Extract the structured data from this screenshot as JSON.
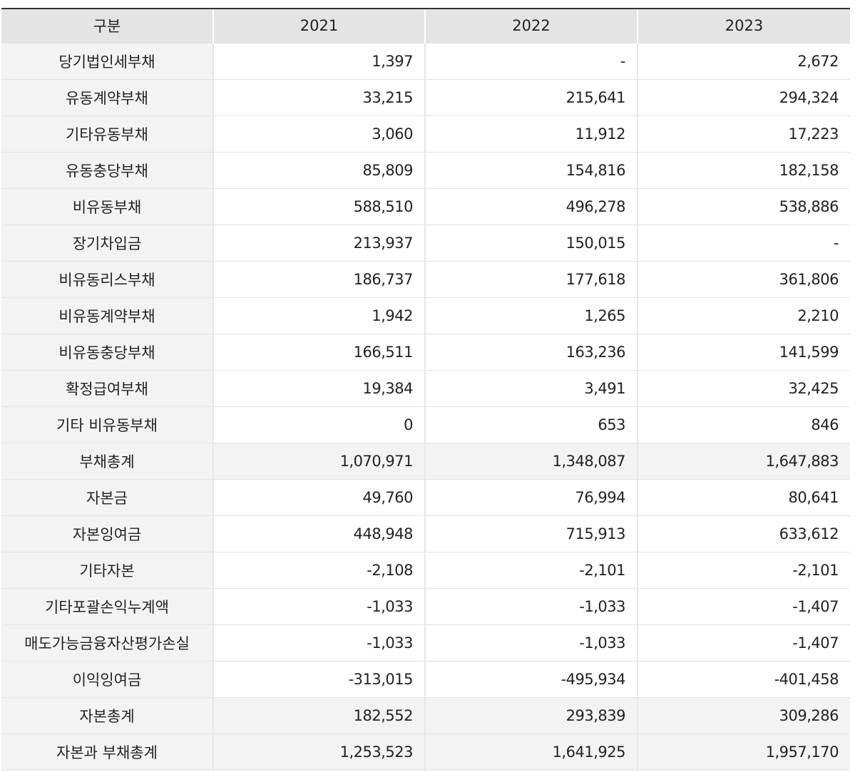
{
  "table": {
    "headers": [
      "구분",
      "2021",
      "2022",
      "2023"
    ],
    "rows": [
      {
        "label": "당기법인세부채",
        "values": [
          "1,397",
          "-",
          "2,672"
        ],
        "total": false
      },
      {
        "label": "유동계약부채",
        "values": [
          "33,215",
          "215,641",
          "294,324"
        ],
        "total": false
      },
      {
        "label": "기타유동부채",
        "values": [
          "3,060",
          "11,912",
          "17,223"
        ],
        "total": false
      },
      {
        "label": "유동충당부채",
        "values": [
          "85,809",
          "154,816",
          "182,158"
        ],
        "total": false
      },
      {
        "label": "비유동부채",
        "values": [
          "588,510",
          "496,278",
          "538,886"
        ],
        "total": false
      },
      {
        "label": "장기차입금",
        "values": [
          "213,937",
          "150,015",
          "-"
        ],
        "total": false
      },
      {
        "label": "비유동리스부채",
        "values": [
          "186,737",
          "177,618",
          "361,806"
        ],
        "total": false
      },
      {
        "label": "비유동계약부채",
        "values": [
          "1,942",
          "1,265",
          "2,210"
        ],
        "total": false
      },
      {
        "label": "비유동충당부채",
        "values": [
          "166,511",
          "163,236",
          "141,599"
        ],
        "total": false
      },
      {
        "label": "확정급여부채",
        "values": [
          "19,384",
          "3,491",
          "32,425"
        ],
        "total": false
      },
      {
        "label": "기타 비유동부채",
        "values": [
          "0",
          "653",
          "846"
        ],
        "total": false
      },
      {
        "label": "부채총계",
        "values": [
          "1,070,971",
          "1,348,087",
          "1,647,883"
        ],
        "total": true
      },
      {
        "label": "자본금",
        "values": [
          "49,760",
          "76,994",
          "80,641"
        ],
        "total": false
      },
      {
        "label": "자본잉여금",
        "values": [
          "448,948",
          "715,913",
          "633,612"
        ],
        "total": false
      },
      {
        "label": "기타자본",
        "values": [
          "-2,108",
          "-2,101",
          "-2,101"
        ],
        "total": false
      },
      {
        "label": "기타포괄손익누계액",
        "values": [
          "-1,033",
          "-1,033",
          "-1,407"
        ],
        "total": false
      },
      {
        "label": "매도가능금융자산평가손실",
        "values": [
          "-1,033",
          "-1,033",
          "-1,407"
        ],
        "total": false
      },
      {
        "label": "이익잉여금",
        "values": [
          "-313,015",
          "-495,934",
          "-401,458"
        ],
        "total": false
      },
      {
        "label": "자본총계",
        "values": [
          "182,552",
          "293,839",
          "309,286"
        ],
        "total": true
      },
      {
        "label": "자본과 부채총계",
        "values": [
          "1,253,523",
          "1,641,925",
          "1,957,170"
        ],
        "total": true
      }
    ]
  },
  "colors": {
    "header_bg": "#e4e4e4",
    "label_bg": "#f3f3f3",
    "top_rule": "#333333"
  }
}
